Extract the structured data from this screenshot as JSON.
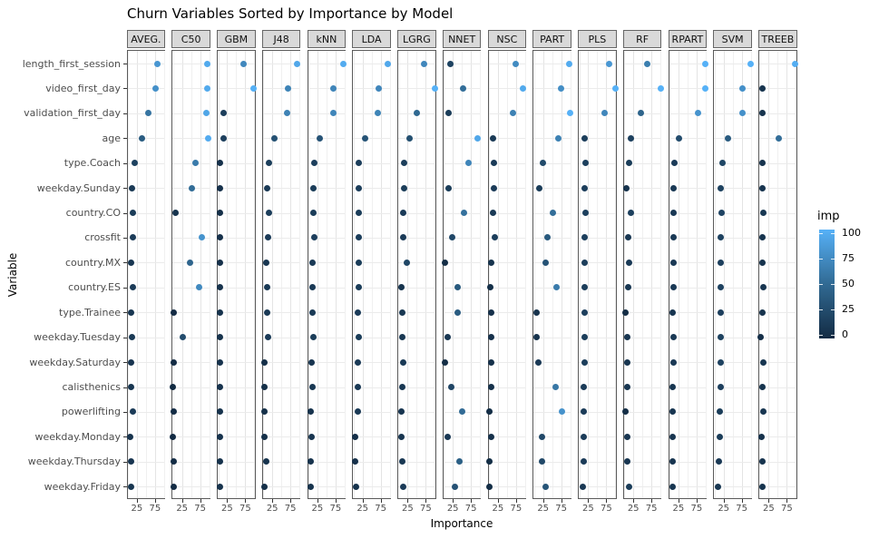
{
  "title": "Churn Variables Sorted by Importance by Model",
  "chart_data": {
    "type": "scatter",
    "facet_by": "Model",
    "title": "Churn Variables Sorted by Importance by Model",
    "xlabel": "Importance",
    "ylabel": "Variable",
    "xlim": [
      0,
      100
    ],
    "x_ticks": [
      25,
      75
    ],
    "grid": "on",
    "variables": [
      "length_first_session",
      "video_first_day",
      "validation_first_day",
      "age",
      "type.Coach",
      "weekday.Sunday",
      "country.CO",
      "crossfit",
      "country.MX",
      "country.ES",
      "type.Trainee",
      "weekday.Tuesday",
      "weekday.Saturday",
      "calisthenics",
      "powerlifting",
      "weekday.Monday",
      "weekday.Thursday",
      "weekday.Friday"
    ],
    "models": [
      "AVEG.",
      "C50",
      "GBM",
      "J48",
      "kNN",
      "LDA",
      "LGRG",
      "NNET",
      "NSC",
      "PART",
      "PLS",
      "RF",
      "RPART",
      "SVM",
      "TREEB"
    ],
    "series": [
      {
        "model": "AVEG.",
        "values": [
          81,
          77,
          57,
          39,
          18,
          11,
          14,
          13,
          9,
          13,
          9,
          11,
          8,
          9,
          13,
          6,
          8,
          9
        ]
      },
      {
        "model": "C50",
        "values": [
          95,
          95,
          92,
          96,
          62,
          52,
          7,
          79,
          46,
          72,
          1,
          26,
          1,
          0,
          1,
          0,
          1,
          1
        ]
      },
      {
        "model": "GBM",
        "values": [
          71,
          99,
          15,
          16,
          5,
          5,
          4,
          5,
          5,
          6,
          6,
          6,
          6,
          6,
          6,
          6,
          6,
          6
        ]
      },
      {
        "model": "J48",
        "values": [
          93,
          68,
          67,
          30,
          15,
          11,
          15,
          13,
          9,
          11,
          11,
          13,
          4,
          4,
          4,
          4,
          7,
          4
        ]
      },
      {
        "model": "kNN",
        "values": [
          96,
          69,
          69,
          32,
          16,
          14,
          14,
          16,
          12,
          12,
          12,
          14,
          8,
          10,
          6,
          8,
          6,
          6
        ]
      },
      {
        "model": "LDA",
        "values": [
          94,
          70,
          68,
          32,
          15,
          15,
          14,
          15,
          14,
          14,
          13,
          14,
          12,
          11,
          11,
          4,
          5,
          6
        ]
      },
      {
        "model": "LGRG",
        "values": [
          70,
          100,
          49,
          29,
          15,
          14,
          13,
          13,
          22,
          7,
          10,
          10,
          12,
          10,
          8,
          8,
          10,
          13
        ]
      },
      {
        "model": "NNET",
        "values": [
          19,
          53,
          14,
          93,
          69,
          14,
          55,
          23,
          2,
          37,
          39,
          10,
          2,
          21,
          51,
          11,
          42,
          31
        ]
      },
      {
        "model": "NSC",
        "values": [
          73,
          95,
          66,
          12,
          13,
          13,
          12,
          15,
          7,
          4,
          5,
          5,
          5,
          5,
          2,
          5,
          2,
          2
        ]
      },
      {
        "model": "PART",
        "values": [
          96,
          75,
          100,
          66,
          25,
          14,
          53,
          37,
          32,
          62,
          6,
          6,
          11,
          59,
          78,
          23,
          23,
          33
        ]
      },
      {
        "model": "PLS",
        "values": [
          82,
          100,
          70,
          15,
          17,
          15,
          17,
          16,
          15,
          15,
          16,
          15,
          15,
          13,
          13,
          13,
          13,
          11
        ]
      },
      {
        "model": "RF",
        "values": [
          64,
          100,
          45,
          17,
          14,
          6,
          17,
          10,
          12,
          10,
          2,
          9,
          9,
          9,
          2,
          9,
          9,
          14
        ]
      },
      {
        "model": "RPART",
        "values": [
          100,
          100,
          79,
          26,
          13,
          11,
          11,
          11,
          11,
          11,
          9,
          11,
          11,
          9,
          9,
          8,
          8,
          9
        ]
      },
      {
        "model": "SVM",
        "values": [
          100,
          77,
          77,
          38,
          22,
          18,
          20,
          18,
          16,
          18,
          16,
          18,
          18,
          16,
          14,
          14,
          11,
          10
        ]
      },
      {
        "model": "TREEB",
        "values": [
          97,
          7,
          7,
          53,
          7,
          7,
          10,
          7,
          7,
          9,
          7,
          3,
          9,
          7,
          9,
          5,
          7,
          7
        ]
      }
    ],
    "legend": {
      "title": "imp",
      "ticks": [
        100,
        75,
        50,
        25,
        0
      ],
      "low_color": "#132B43",
      "mid_color": "#316A93",
      "high_color": "#56B1F7"
    }
  },
  "colors": {
    "strip_bg": "#d9d9d9",
    "panel_border": "#5a5a5a",
    "grid_major": "#e4e4e4",
    "grid_minor": "#f0f0f0",
    "axis_text": "#4d4d4d"
  }
}
